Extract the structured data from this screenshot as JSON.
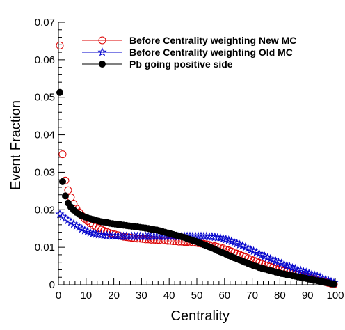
{
  "chart_data": {
    "type": "scatter",
    "xlabel": "Centrality",
    "ylabel": "Event Fraction",
    "xlim": [
      0,
      100
    ],
    "ylim": [
      0,
      0.07
    ],
    "xticks": [
      0,
      10,
      20,
      30,
      40,
      50,
      60,
      70,
      80,
      90,
      100
    ],
    "xtick_labels": [
      "0",
      "10",
      "20",
      "30",
      "40",
      "50",
      "60",
      "70",
      "80",
      "90",
      "100"
    ],
    "yticks": [
      0,
      0.01,
      0.02,
      0.03,
      0.04,
      0.05,
      0.06,
      0.07
    ],
    "ytick_labels": [
      "0",
      "0.01",
      "0.02",
      "0.03",
      "0.04",
      "0.05",
      "0.06",
      "0.07"
    ],
    "grid": false,
    "legend_position": "top-right",
    "series": [
      {
        "name": "Before Centrality weighting New MC",
        "color": "#dd0000",
        "marker": "open-circle",
        "points": [
          [
            0.5,
            0.0638
          ],
          [
            1.5,
            0.0348
          ],
          [
            2.5,
            0.0278
          ],
          [
            3.5,
            0.0252
          ],
          [
            4.5,
            0.0233
          ],
          [
            5.5,
            0.0216
          ],
          [
            6.5,
            0.0203
          ],
          [
            7.5,
            0.0193
          ],
          [
            8.5,
            0.0184
          ],
          [
            9.5,
            0.0176
          ],
          [
            10.5,
            0.017
          ],
          [
            11.5,
            0.0164
          ],
          [
            12.5,
            0.0159
          ],
          [
            13.5,
            0.0155
          ],
          [
            14.5,
            0.0151
          ],
          [
            15.5,
            0.0147
          ],
          [
            16.5,
            0.0144
          ],
          [
            17.5,
            0.0141
          ],
          [
            18.5,
            0.0138
          ],
          [
            19.5,
            0.0136
          ],
          [
            20.5,
            0.0134
          ],
          [
            21.5,
            0.0132
          ],
          [
            22.5,
            0.013
          ],
          [
            23.5,
            0.0128
          ],
          [
            24.5,
            0.0127
          ],
          [
            25.5,
            0.0126
          ],
          [
            26.5,
            0.0125
          ],
          [
            27.5,
            0.0124
          ],
          [
            28.5,
            0.0123
          ],
          [
            29.5,
            0.0123
          ],
          [
            30.5,
            0.0122
          ],
          [
            31.5,
            0.0121
          ],
          [
            32.5,
            0.0121
          ],
          [
            33.5,
            0.012
          ],
          [
            34.5,
            0.012
          ],
          [
            35.5,
            0.0119
          ],
          [
            36.5,
            0.0119
          ],
          [
            37.5,
            0.0118
          ],
          [
            38.5,
            0.0118
          ],
          [
            39.5,
            0.0117
          ],
          [
            40.5,
            0.0117
          ],
          [
            41.5,
            0.0116
          ],
          [
            42.5,
            0.0116
          ],
          [
            43.5,
            0.0115
          ],
          [
            44.5,
            0.0115
          ],
          [
            45.5,
            0.0114
          ],
          [
            46.5,
            0.0114
          ],
          [
            47.5,
            0.0113
          ],
          [
            48.5,
            0.0113
          ],
          [
            49.5,
            0.0112
          ],
          [
            50.5,
            0.0111
          ],
          [
            51.5,
            0.011
          ],
          [
            52.5,
            0.0109
          ],
          [
            53.5,
            0.0108
          ],
          [
            54.5,
            0.0106
          ],
          [
            55.5,
            0.0105
          ],
          [
            56.5,
            0.0103
          ],
          [
            57.5,
            0.0101
          ],
          [
            58.5,
            0.0099
          ],
          [
            59.5,
            0.0097
          ],
          [
            60.5,
            0.0094
          ],
          [
            61.5,
            0.0092
          ],
          [
            62.5,
            0.0089
          ],
          [
            63.5,
            0.0086
          ],
          [
            64.5,
            0.0083
          ],
          [
            65.5,
            0.008
          ],
          [
            66.5,
            0.0077
          ],
          [
            67.5,
            0.0074
          ],
          [
            68.5,
            0.0071
          ],
          [
            69.5,
            0.0068
          ],
          [
            70.5,
            0.0065
          ],
          [
            71.5,
            0.0062
          ],
          [
            72.5,
            0.0059
          ],
          [
            73.5,
            0.0056
          ],
          [
            74.5,
            0.0053
          ],
          [
            75.5,
            0.0051
          ],
          [
            76.5,
            0.0048
          ],
          [
            77.5,
            0.0046
          ],
          [
            78.5,
            0.0043
          ],
          [
            79.5,
            0.0041
          ],
          [
            80.5,
            0.0039
          ],
          [
            81.5,
            0.0037
          ],
          [
            82.5,
            0.0035
          ],
          [
            83.5,
            0.0033
          ],
          [
            84.5,
            0.0031
          ],
          [
            85.5,
            0.0029
          ],
          [
            86.5,
            0.0027
          ],
          [
            87.5,
            0.0025
          ],
          [
            88.5,
            0.0023
          ],
          [
            89.5,
            0.0021
          ],
          [
            90.5,
            0.0019
          ],
          [
            91.5,
            0.0017
          ],
          [
            92.5,
            0.0015
          ],
          [
            93.5,
            0.0013
          ],
          [
            94.5,
            0.0011
          ],
          [
            95.5,
            0.0009
          ],
          [
            96.5,
            0.0007
          ],
          [
            97.5,
            0.0005
          ],
          [
            98.5,
            0.0003
          ],
          [
            99.5,
            0.0001
          ]
        ]
      },
      {
        "name": "Before Centrality weighting Old MC",
        "color": "#0000cc",
        "marker": "open-star",
        "points": [
          [
            0.5,
            0.0188
          ],
          [
            1.5,
            0.0182
          ],
          [
            2.5,
            0.0177
          ],
          [
            3.5,
            0.0172
          ],
          [
            4.5,
            0.0167
          ],
          [
            5.5,
            0.0162
          ],
          [
            6.5,
            0.0157
          ],
          [
            7.5,
            0.0153
          ],
          [
            8.5,
            0.0149
          ],
          [
            9.5,
            0.0145
          ],
          [
            10.5,
            0.0142
          ],
          [
            11.5,
            0.0139
          ],
          [
            12.5,
            0.0137
          ],
          [
            13.5,
            0.0135
          ],
          [
            14.5,
            0.0134
          ],
          [
            15.5,
            0.0133
          ],
          [
            16.5,
            0.0132
          ],
          [
            17.5,
            0.0131
          ],
          [
            18.5,
            0.0131
          ],
          [
            19.5,
            0.013
          ],
          [
            20.5,
            0.013
          ],
          [
            21.5,
            0.013
          ],
          [
            22.5,
            0.0129
          ],
          [
            23.5,
            0.0129
          ],
          [
            24.5,
            0.0129
          ],
          [
            25.5,
            0.0129
          ],
          [
            26.5,
            0.0129
          ],
          [
            27.5,
            0.0129
          ],
          [
            28.5,
            0.0129
          ],
          [
            29.5,
            0.0129
          ],
          [
            30.5,
            0.0129
          ],
          [
            31.5,
            0.0129
          ],
          [
            32.5,
            0.0129
          ],
          [
            33.5,
            0.0129
          ],
          [
            34.5,
            0.0129
          ],
          [
            35.5,
            0.0129
          ],
          [
            36.5,
            0.0129
          ],
          [
            37.5,
            0.0129
          ],
          [
            38.5,
            0.0129
          ],
          [
            39.5,
            0.0129
          ],
          [
            40.5,
            0.0129
          ],
          [
            41.5,
            0.0129
          ],
          [
            42.5,
            0.0129
          ],
          [
            43.5,
            0.0129
          ],
          [
            44.5,
            0.0129
          ],
          [
            45.5,
            0.0129
          ],
          [
            46.5,
            0.0129
          ],
          [
            47.5,
            0.0129
          ],
          [
            48.5,
            0.0129
          ],
          [
            49.5,
            0.0129
          ],
          [
            50.5,
            0.0129
          ],
          [
            51.5,
            0.0129
          ],
          [
            52.5,
            0.0129
          ],
          [
            53.5,
            0.0129
          ],
          [
            54.5,
            0.0128
          ],
          [
            55.5,
            0.0128
          ],
          [
            56.5,
            0.0127
          ],
          [
            57.5,
            0.0126
          ],
          [
            58.5,
            0.0125
          ],
          [
            59.5,
            0.0123
          ],
          [
            60.5,
            0.0121
          ],
          [
            61.5,
            0.0119
          ],
          [
            62.5,
            0.0116
          ],
          [
            63.5,
            0.0113
          ],
          [
            64.5,
            0.011
          ],
          [
            65.5,
            0.0107
          ],
          [
            66.5,
            0.0104
          ],
          [
            67.5,
            0.01
          ],
          [
            68.5,
            0.0097
          ],
          [
            69.5,
            0.0093
          ],
          [
            70.5,
            0.009
          ],
          [
            71.5,
            0.0086
          ],
          [
            72.5,
            0.0083
          ],
          [
            73.5,
            0.0079
          ],
          [
            74.5,
            0.0076
          ],
          [
            75.5,
            0.0072
          ],
          [
            76.5,
            0.0069
          ],
          [
            77.5,
            0.0066
          ],
          [
            78.5,
            0.0063
          ],
          [
            79.5,
            0.006
          ],
          [
            80.5,
            0.0057
          ],
          [
            81.5,
            0.0054
          ],
          [
            82.5,
            0.0051
          ],
          [
            83.5,
            0.0048
          ],
          [
            84.5,
            0.0045
          ],
          [
            85.5,
            0.0043
          ],
          [
            86.5,
            0.004
          ],
          [
            87.5,
            0.0038
          ],
          [
            88.5,
            0.0035
          ],
          [
            89.5,
            0.0033
          ],
          [
            90.5,
            0.003
          ],
          [
            91.5,
            0.0028
          ],
          [
            92.5,
            0.0025
          ],
          [
            93.5,
            0.0023
          ],
          [
            94.5,
            0.002
          ],
          [
            95.5,
            0.0017
          ],
          [
            96.5,
            0.0014
          ],
          [
            97.5,
            0.0011
          ],
          [
            98.5,
            0.0008
          ],
          [
            99.5,
            0.0005
          ]
        ]
      },
      {
        "name": "Pb going positive side",
        "color": "#000000",
        "marker": "filled-circle",
        "points": [
          [
            0.5,
            0.0513
          ],
          [
            1.5,
            0.0275
          ],
          [
            2.5,
            0.0237
          ],
          [
            3.5,
            0.0218
          ],
          [
            4.5,
            0.0207
          ],
          [
            5.5,
            0.0199
          ],
          [
            6.5,
            0.0193
          ],
          [
            7.5,
            0.0188
          ],
          [
            8.5,
            0.0184
          ],
          [
            9.5,
            0.0181
          ],
          [
            10.5,
            0.0178
          ],
          [
            11.5,
            0.0176
          ],
          [
            12.5,
            0.0174
          ],
          [
            13.5,
            0.0172
          ],
          [
            14.5,
            0.017
          ],
          [
            15.5,
            0.0168
          ],
          [
            16.5,
            0.0167
          ],
          [
            17.5,
            0.0166
          ],
          [
            18.5,
            0.0164
          ],
          [
            19.5,
            0.0163
          ],
          [
            20.5,
            0.0162
          ],
          [
            21.5,
            0.0161
          ],
          [
            22.5,
            0.016
          ],
          [
            23.5,
            0.0159
          ],
          [
            24.5,
            0.0158
          ],
          [
            25.5,
            0.0157
          ],
          [
            26.5,
            0.0156
          ],
          [
            27.5,
            0.0155
          ],
          [
            28.5,
            0.0154
          ],
          [
            29.5,
            0.0153
          ],
          [
            30.5,
            0.0152
          ],
          [
            31.5,
            0.0151
          ],
          [
            32.5,
            0.015
          ],
          [
            33.5,
            0.0148
          ],
          [
            34.5,
            0.0147
          ],
          [
            35.5,
            0.0146
          ],
          [
            36.5,
            0.0144
          ],
          [
            37.5,
            0.0142
          ],
          [
            38.5,
            0.014
          ],
          [
            39.5,
            0.0138
          ],
          [
            40.5,
            0.0136
          ],
          [
            41.5,
            0.0134
          ],
          [
            42.5,
            0.0132
          ],
          [
            43.5,
            0.013
          ],
          [
            44.5,
            0.0128
          ],
          [
            45.5,
            0.0126
          ],
          [
            46.5,
            0.0123
          ],
          [
            47.5,
            0.0121
          ],
          [
            48.5,
            0.0118
          ],
          [
            49.5,
            0.0116
          ],
          [
            50.5,
            0.0113
          ],
          [
            51.5,
            0.011
          ],
          [
            52.5,
            0.0107
          ],
          [
            53.5,
            0.0104
          ],
          [
            54.5,
            0.0101
          ],
          [
            55.5,
            0.0098
          ],
          [
            56.5,
            0.0095
          ],
          [
            57.5,
            0.0091
          ],
          [
            58.5,
            0.0088
          ],
          [
            59.5,
            0.0085
          ],
          [
            60.5,
            0.0082
          ],
          [
            61.5,
            0.0078
          ],
          [
            62.5,
            0.0075
          ],
          [
            63.5,
            0.0072
          ],
          [
            64.5,
            0.0069
          ],
          [
            65.5,
            0.0066
          ],
          [
            66.5,
            0.0063
          ],
          [
            67.5,
            0.006
          ],
          [
            68.5,
            0.0057
          ],
          [
            69.5,
            0.0054
          ],
          [
            70.5,
            0.0051
          ],
          [
            71.5,
            0.0049
          ],
          [
            72.5,
            0.0046
          ],
          [
            73.5,
            0.0044
          ],
          [
            74.5,
            0.0042
          ],
          [
            75.5,
            0.004
          ],
          [
            76.5,
            0.0038
          ],
          [
            77.5,
            0.0036
          ],
          [
            78.5,
            0.0034
          ],
          [
            79.5,
            0.0032
          ],
          [
            80.5,
            0.003
          ],
          [
            81.5,
            0.0029
          ],
          [
            82.5,
            0.0027
          ],
          [
            83.5,
            0.0026
          ],
          [
            84.5,
            0.0024
          ],
          [
            85.5,
            0.0023
          ],
          [
            86.5,
            0.0021
          ],
          [
            87.5,
            0.002
          ],
          [
            88.5,
            0.0018
          ],
          [
            89.5,
            0.0017
          ],
          [
            90.5,
            0.0015
          ],
          [
            91.5,
            0.0014
          ],
          [
            92.5,
            0.0012
          ],
          [
            93.5,
            0.0011
          ],
          [
            94.5,
            0.0009
          ],
          [
            95.5,
            0.0008
          ],
          [
            96.5,
            0.0006
          ],
          [
            97.5,
            0.0005
          ],
          [
            98.5,
            0.0003
          ],
          [
            99.5,
            0.0002
          ]
        ]
      }
    ]
  }
}
